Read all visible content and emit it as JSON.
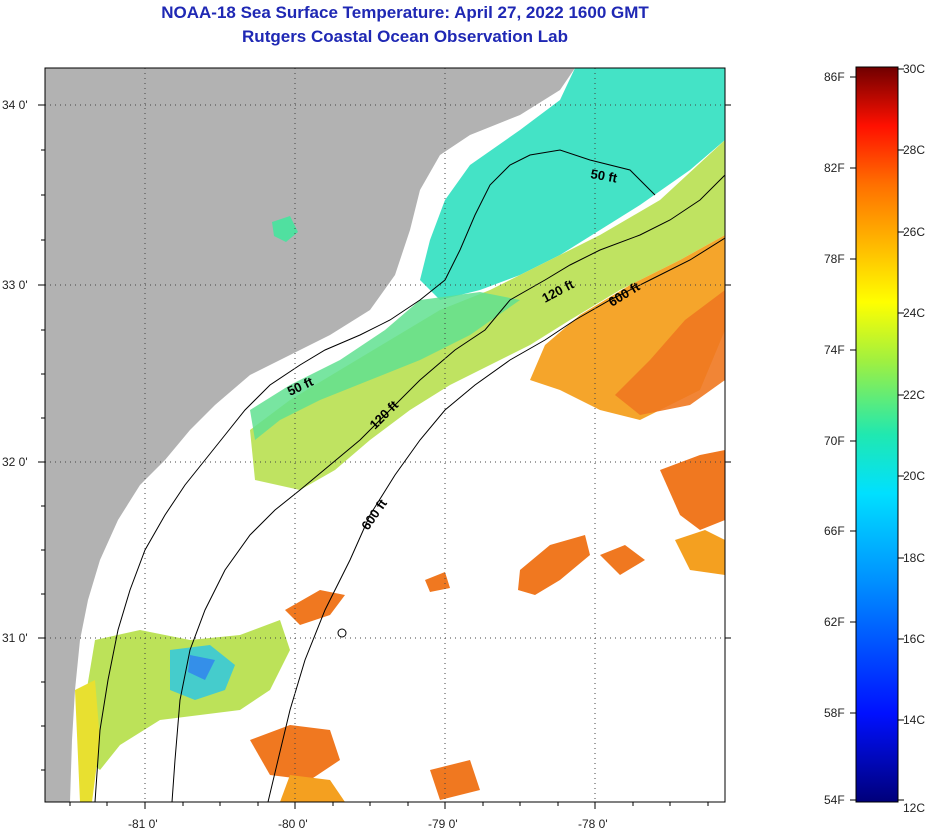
{
  "title": {
    "line1": "NOAA-18 Sea Surface Temperature:  April 27, 2022 1600 GMT",
    "line2": "Rutgers Coastal Ocean Observation Lab"
  },
  "map": {
    "lat_labels": [
      "34 0'",
      "33 0'",
      "32 0'",
      "31 0'"
    ],
    "lon_labels": [
      "-81 0'",
      "-80 0'",
      "-79 0'",
      "-78 0'"
    ],
    "contour_labels": [
      "50 ft",
      "50 ft",
      "120 ft",
      "120 ft",
      "600 ft",
      "600 ft"
    ]
  },
  "colorbar": {
    "f_labels": [
      "86F",
      "82F",
      "78F",
      "74F",
      "70F",
      "66F",
      "62F",
      "58F",
      "54F"
    ],
    "c_labels": [
      "30C",
      "28C",
      "26C",
      "24C",
      "22C",
      "20C",
      "18C",
      "16C",
      "14C",
      "12C"
    ]
  },
  "colors": {
    "land": "#b2b2b2",
    "title": "#1f28b4",
    "warm": "#f07820",
    "mid": "#b8e050",
    "cool": "#30e0c0"
  }
}
